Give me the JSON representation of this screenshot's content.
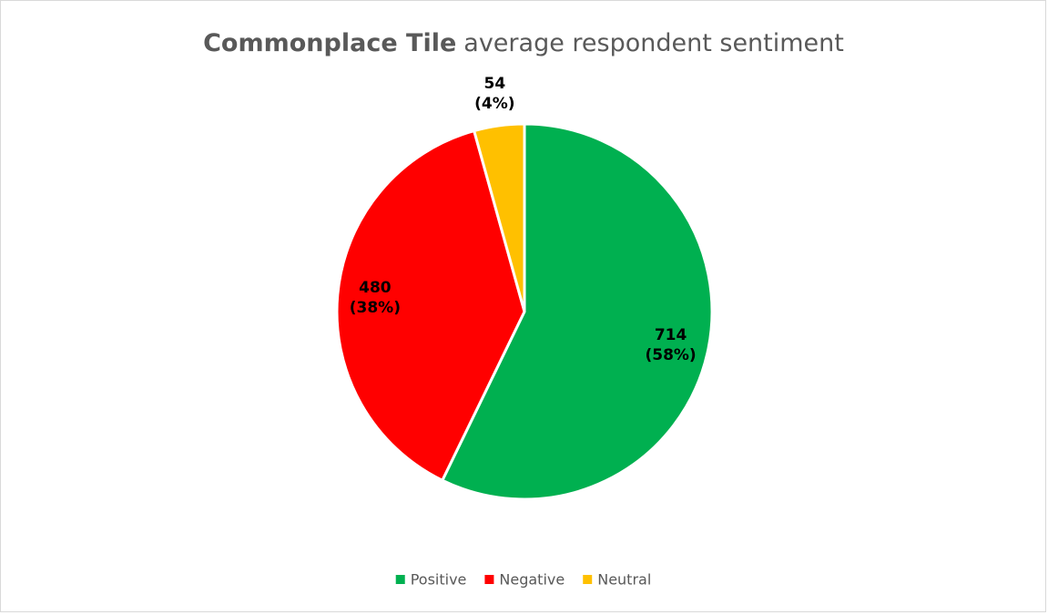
{
  "chart_data": {
    "type": "pie",
    "title_parts": [
      "Commonplace Tile",
      "average respondent sentiment"
    ],
    "categories": [
      "Positive",
      "Negative",
      "Neutral"
    ],
    "values": [
      714,
      480,
      54
    ],
    "value_labels": [
      [
        "714",
        "(58%)"
      ],
      [
        "480",
        "(38%)"
      ],
      [
        "54",
        "(4%)"
      ]
    ],
    "colors": [
      "#00b050",
      "#ff0000",
      "#ffc000"
    ],
    "legend": "bottom"
  }
}
